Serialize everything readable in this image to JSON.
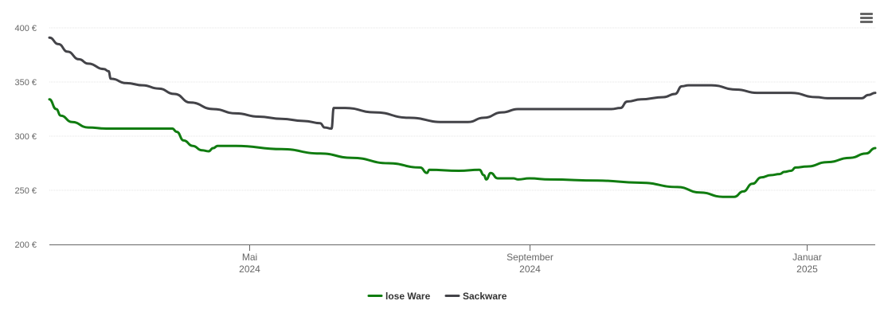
{
  "chart_data": {
    "type": "line",
    "y_ticks": [
      "200 €",
      "250 €",
      "300 €",
      "350 €",
      "400 €"
    ],
    "ylim": [
      200,
      400
    ],
    "xlim": [
      "2024-02-03",
      "2025-01-31"
    ],
    "x_ticks": [
      {
        "date": "2024-05-01",
        "month": "Mai",
        "year": "2024"
      },
      {
        "date": "2024-09-01",
        "month": "September",
        "year": "2024"
      },
      {
        "date": "2025-01-01",
        "month": "Januar",
        "year": "2025"
      }
    ],
    "grid": true,
    "legend_position": "bottom-center",
    "series": [
      {
        "name": "lose Ware",
        "color": "#107c10",
        "points": [
          [
            "2024-02-03",
            334
          ],
          [
            "2024-02-06",
            325
          ],
          [
            "2024-02-08",
            319
          ],
          [
            "2024-02-13",
            313
          ],
          [
            "2024-02-20",
            308
          ],
          [
            "2024-02-28",
            307
          ],
          [
            "2024-03-13",
            307
          ],
          [
            "2024-03-26",
            307
          ],
          [
            "2024-03-28",
            307
          ],
          [
            "2024-03-30",
            304
          ],
          [
            "2024-04-02",
            296
          ],
          [
            "2024-04-06",
            291
          ],
          [
            "2024-04-10",
            287
          ],
          [
            "2024-04-13",
            286
          ],
          [
            "2024-04-15",
            289
          ],
          [
            "2024-04-17",
            291
          ],
          [
            "2024-04-25",
            291
          ],
          [
            "2024-05-15",
            288
          ],
          [
            "2024-06-01",
            284
          ],
          [
            "2024-06-15",
            280
          ],
          [
            "2024-07-01",
            275
          ],
          [
            "2024-07-15",
            271
          ],
          [
            "2024-08-01",
            268
          ],
          [
            "2024-08-15",
            266
          ],
          [
            "2024-07-18",
            266
          ],
          [
            "2024-07-19",
            269
          ],
          [
            "2024-08-10",
            269
          ],
          [
            "2024-08-12",
            264
          ],
          [
            "2024-08-13",
            260
          ],
          [
            "2024-08-18",
            261
          ],
          [
            "2024-08-25",
            261
          ],
          [
            "2024-08-27",
            260
          ],
          [
            "2024-09-01",
            261
          ],
          [
            "2024-09-10",
            260
          ],
          [
            "2024-10-01",
            259
          ],
          [
            "2024-10-20",
            257
          ],
          [
            "2024-11-05",
            253
          ],
          [
            "2024-11-15",
            248
          ],
          [
            "2024-11-25",
            244
          ],
          [
            "2024-11-30",
            244
          ],
          [
            "2024-12-04",
            249
          ],
          [
            "2024-12-08",
            256
          ],
          [
            "2024-12-12",
            262
          ],
          [
            "2024-12-16",
            264
          ],
          [
            "2024-12-20",
            265
          ],
          [
            "2024-12-22",
            267
          ],
          [
            "2024-12-25",
            268
          ],
          [
            "2024-12-27",
            271
          ],
          [
            "2025-01-01",
            272
          ],
          [
            "2025-01-10",
            276
          ],
          [
            "2025-01-20",
            280
          ],
          [
            "2025-01-27",
            284
          ],
          [
            "2025-01-31",
            289
          ]
        ]
      },
      {
        "name": "Sackware",
        "color": "#434348",
        "points": [
          [
            "2024-02-03",
            391
          ],
          [
            "2024-02-07",
            385
          ],
          [
            "2024-02-11",
            378
          ],
          [
            "2024-02-16",
            371
          ],
          [
            "2024-02-20",
            367
          ],
          [
            "2024-02-27",
            362
          ],
          [
            "2024-02-29",
            360
          ],
          [
            "2024-03-01",
            353
          ],
          [
            "2024-03-08",
            349
          ],
          [
            "2024-03-15",
            347
          ],
          [
            "2024-03-22",
            344
          ],
          [
            "2024-03-29",
            339
          ],
          [
            "2024-04-05",
            331
          ],
          [
            "2024-04-15",
            325
          ],
          [
            "2024-04-25",
            321
          ],
          [
            "2024-05-05",
            318
          ],
          [
            "2024-05-15",
            316
          ],
          [
            "2024-05-25",
            314
          ],
          [
            "2024-06-01",
            312
          ],
          [
            "2024-06-03",
            308
          ],
          [
            "2024-06-06",
            307
          ],
          [
            "2024-06-07",
            326
          ],
          [
            "2024-06-12",
            326
          ],
          [
            "2024-06-25",
            322
          ],
          [
            "2024-07-10",
            317
          ],
          [
            "2024-07-25",
            313
          ],
          [
            "2024-08-05",
            313
          ],
          [
            "2024-08-12",
            317
          ],
          [
            "2024-08-20",
            322
          ],
          [
            "2024-08-27",
            325
          ],
          [
            "2024-09-10",
            325
          ],
          [
            "2024-10-07",
            325
          ],
          [
            "2024-10-11",
            326
          ],
          [
            "2024-10-14",
            332
          ],
          [
            "2024-10-20",
            334
          ],
          [
            "2024-10-30",
            336
          ],
          [
            "2024-11-04",
            339
          ],
          [
            "2024-11-07",
            346
          ],
          [
            "2024-11-10",
            347
          ],
          [
            "2024-11-20",
            347
          ],
          [
            "2024-12-01",
            343
          ],
          [
            "2024-12-10",
            340
          ],
          [
            "2024-12-25",
            340
          ],
          [
            "2025-01-05",
            336
          ],
          [
            "2025-01-10",
            335
          ],
          [
            "2025-01-25",
            335
          ],
          [
            "2025-01-28",
            338
          ],
          [
            "2025-01-31",
            340
          ]
        ]
      }
    ]
  },
  "menu_icon": "hamburger-menu-icon"
}
